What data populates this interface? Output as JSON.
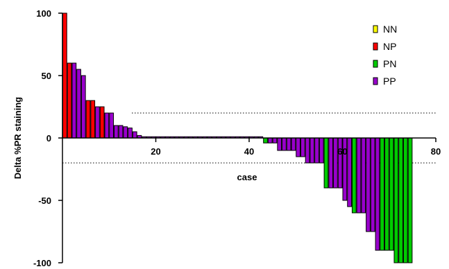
{
  "chart_data": {
    "type": "bar",
    "xlabel": "case",
    "ylabel": "Delta %PR staining",
    "xlim": [
      0,
      80
    ],
    "ylim": [
      -100,
      100
    ],
    "xticks": [
      20,
      40,
      60,
      80
    ],
    "yticks": [
      100,
      50,
      0,
      -50,
      -100
    ],
    "reference_lines": [
      20,
      -20
    ],
    "legend_position": "top-right",
    "series": [
      {
        "name": "NN",
        "color": "#ffff00"
      },
      {
        "name": "NP",
        "color": "#ff0000"
      },
      {
        "name": "PN",
        "color": "#00cc00"
      },
      {
        "name": "PP",
        "color": "#9900cc"
      }
    ],
    "cases": [
      {
        "case": 1,
        "group": "NP",
        "value": 100
      },
      {
        "case": 2,
        "group": "NP",
        "value": 60
      },
      {
        "case": 3,
        "group": "PP",
        "value": 60
      },
      {
        "case": 4,
        "group": "PP",
        "value": 55
      },
      {
        "case": 5,
        "group": "PP",
        "value": 50
      },
      {
        "case": 6,
        "group": "NP",
        "value": 30
      },
      {
        "case": 7,
        "group": "NP",
        "value": 30
      },
      {
        "case": 8,
        "group": "PP",
        "value": 25
      },
      {
        "case": 9,
        "group": "NP",
        "value": 25
      },
      {
        "case": 10,
        "group": "PP",
        "value": 20
      },
      {
        "case": 11,
        "group": "PP",
        "value": 20
      },
      {
        "case": 12,
        "group": "PP",
        "value": 10
      },
      {
        "case": 13,
        "group": "PP",
        "value": 10
      },
      {
        "case": 14,
        "group": "PP",
        "value": 9
      },
      {
        "case": 15,
        "group": "PP",
        "value": 8
      },
      {
        "case": 16,
        "group": "PP",
        "value": 5
      },
      {
        "case": 17,
        "group": "PP",
        "value": 2
      },
      {
        "case": 18,
        "group": "PP",
        "value": 1
      },
      {
        "case": 19,
        "group": "PP",
        "value": 1
      },
      {
        "case": 20,
        "group": "PP",
        "value": 1
      },
      {
        "case": 21,
        "group": "PP",
        "value": 1
      },
      {
        "case": 22,
        "group": "PP",
        "value": 1
      },
      {
        "case": 23,
        "group": "PP",
        "value": 1
      },
      {
        "case": 24,
        "group": "PP",
        "value": 1
      },
      {
        "case": 25,
        "group": "PP",
        "value": 1
      },
      {
        "case": 26,
        "group": "PP",
        "value": 1
      },
      {
        "case": 27,
        "group": "PP",
        "value": 1
      },
      {
        "case": 28,
        "group": "PP",
        "value": 1
      },
      {
        "case": 29,
        "group": "PP",
        "value": 1
      },
      {
        "case": 30,
        "group": "PP",
        "value": 1
      },
      {
        "case": 31,
        "group": "PP",
        "value": 1
      },
      {
        "case": 32,
        "group": "PP",
        "value": 1
      },
      {
        "case": 33,
        "group": "PP",
        "value": 1
      },
      {
        "case": 34,
        "group": "PP",
        "value": 1
      },
      {
        "case": 35,
        "group": "PP",
        "value": 1
      },
      {
        "case": 36,
        "group": "PP",
        "value": 1
      },
      {
        "case": 37,
        "group": "PP",
        "value": 1
      },
      {
        "case": 38,
        "group": "PP",
        "value": 1
      },
      {
        "case": 39,
        "group": "PP",
        "value": 1
      },
      {
        "case": 40,
        "group": "PP",
        "value": 1
      },
      {
        "case": 41,
        "group": "PP",
        "value": 1
      },
      {
        "case": 42,
        "group": "PP",
        "value": 1
      },
      {
        "case": 43,
        "group": "PP",
        "value": 1
      },
      {
        "case": 44,
        "group": "PN",
        "value": -4
      },
      {
        "case": 45,
        "group": "PP",
        "value": -4
      },
      {
        "case": 46,
        "group": "PP",
        "value": -4
      },
      {
        "case": 47,
        "group": "PP",
        "value": -10
      },
      {
        "case": 48,
        "group": "PP",
        "value": -10
      },
      {
        "case": 49,
        "group": "PP",
        "value": -10
      },
      {
        "case": 50,
        "group": "PP",
        "value": -10
      },
      {
        "case": 51,
        "group": "PP",
        "value": -15
      },
      {
        "case": 52,
        "group": "PP",
        "value": -15
      },
      {
        "case": 53,
        "group": "PP",
        "value": -20
      },
      {
        "case": 54,
        "group": "PP",
        "value": -20
      },
      {
        "case": 55,
        "group": "PP",
        "value": -20
      },
      {
        "case": 56,
        "group": "PP",
        "value": -20
      },
      {
        "case": 57,
        "group": "PN",
        "value": -40
      },
      {
        "case": 58,
        "group": "PP",
        "value": -40
      },
      {
        "case": 59,
        "group": "PP",
        "value": -40
      },
      {
        "case": 60,
        "group": "PP",
        "value": -40
      },
      {
        "case": 61,
        "group": "PP",
        "value": -50
      },
      {
        "case": 62,
        "group": "PP",
        "value": -55
      },
      {
        "case": 63,
        "group": "PN",
        "value": -60
      },
      {
        "case": 64,
        "group": "PP",
        "value": -60
      },
      {
        "case": 65,
        "group": "PP",
        "value": -60
      },
      {
        "case": 66,
        "group": "PP",
        "value": -75
      },
      {
        "case": 67,
        "group": "PP",
        "value": -75
      },
      {
        "case": 68,
        "group": "PP",
        "value": -90
      },
      {
        "case": 69,
        "group": "PN",
        "value": -90
      },
      {
        "case": 70,
        "group": "PN",
        "value": -90
      },
      {
        "case": 71,
        "group": "PN",
        "value": -90
      },
      {
        "case": 72,
        "group": "PN",
        "value": -100
      },
      {
        "case": 73,
        "group": "PN",
        "value": -100
      },
      {
        "case": 74,
        "group": "PN",
        "value": -100
      },
      {
        "case": 75,
        "group": "PN",
        "value": -100
      }
    ]
  }
}
